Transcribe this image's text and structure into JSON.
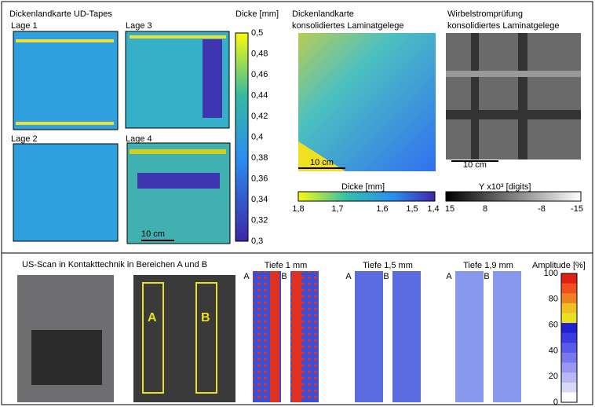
{
  "figure": {
    "ud_tapes": {
      "title": "Dickenlandkarte UD-Tapes",
      "layers": [
        "Lage 1",
        "Lage 3",
        "Lage 2",
        "Lage 4"
      ],
      "scale": "10 cm",
      "colorbar": {
        "title": "Dicke [mm]",
        "ticks": [
          "0,5",
          "0,48",
          "0,46",
          "0,44",
          "0,42",
          "0,4",
          "0,38",
          "0,36",
          "0,34",
          "0,32",
          "0,3"
        ]
      }
    },
    "laminate": {
      "title": [
        "Dickenlandkarte",
        "konsolidiertes Laminatgelege"
      ],
      "scale": "10 cm",
      "colorbar": {
        "title": "Dicke [mm]",
        "ticks": [
          "1,8",
          "1,7",
          "1,6",
          "1,5",
          "1,4"
        ]
      }
    },
    "eddy": {
      "title": [
        "Wirbelstromprüfung",
        "konsolidiertes Laminatgelege"
      ],
      "scale": "10 cm",
      "colorbar": {
        "title": "Y  x10³ [digits]",
        "ticks": [
          "15",
          "8",
          "-8",
          "-15"
        ]
      }
    },
    "us_scan": {
      "title": "US-Scan in Kontakttechnik in Bereichen A und B",
      "region_labels": [
        "A",
        "B"
      ],
      "depths": [
        "Tiefe 1 mm",
        "Tiefe 1,5 mm",
        "Tiefe 1,9 mm"
      ],
      "colorbar": {
        "title": "Amplitude [%]",
        "ticks": [
          "100",
          "80",
          "60",
          "40",
          "20",
          "0"
        ]
      }
    }
  }
}
